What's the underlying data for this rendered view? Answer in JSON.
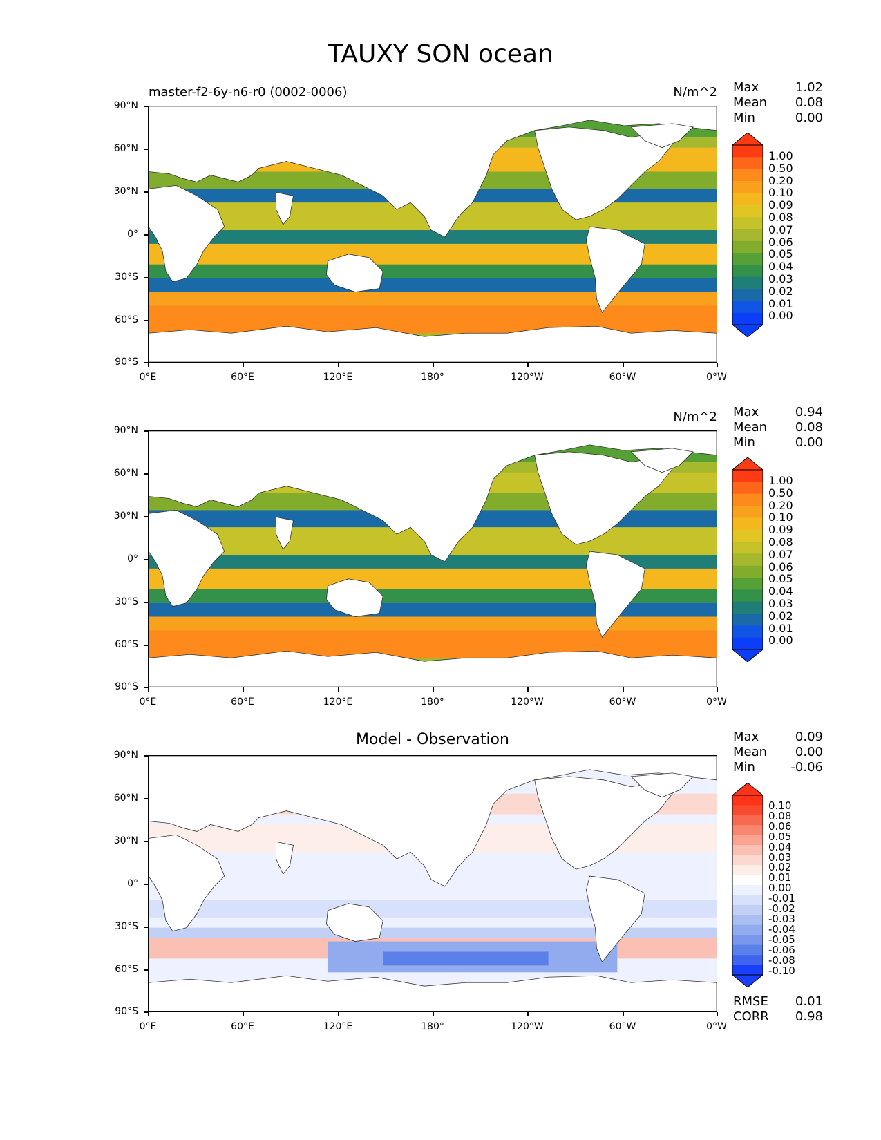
{
  "figure": {
    "title": "TAUXY SON ocean"
  },
  "axes": {
    "lat_ticks": [
      "90°N",
      "60°N",
      "30°N",
      "0°",
      "30°S",
      "60°S",
      "90°S"
    ],
    "lon_ticks": [
      "0°E",
      "60°E",
      "120°E",
      "180°",
      "120°W",
      "60°W",
      "0°W"
    ]
  },
  "panels": [
    {
      "id": "model",
      "left_label": "master-f2-6y-n6-r0 (0002-0006)",
      "units": "N/m^2",
      "stats": {
        "max_label": "Max",
        "max": "1.02",
        "mean_label": "Mean",
        "mean": "0.08",
        "min_label": "Min",
        "min": "0.00"
      },
      "colorbar_ticks": [
        "1.00",
        "0.50",
        "0.20",
        "0.10",
        "0.09",
        "0.08",
        "0.07",
        "0.06",
        "0.05",
        "0.04",
        "0.03",
        "0.02",
        "0.01",
        "0.00"
      ]
    },
    {
      "id": "observation",
      "units": "N/m^2",
      "stats": {
        "max_label": "Max",
        "max": "0.94",
        "mean_label": "Mean",
        "mean": "0.08",
        "min_label": "Min",
        "min": "0.00"
      },
      "colorbar_ticks": [
        "1.00",
        "0.50",
        "0.20",
        "0.10",
        "0.09",
        "0.08",
        "0.07",
        "0.06",
        "0.05",
        "0.04",
        "0.03",
        "0.02",
        "0.01",
        "0.00"
      ]
    },
    {
      "id": "difference",
      "title": "Model - Observation",
      "stats": {
        "max_label": "Max",
        "max": "0.09",
        "mean_label": "Mean",
        "mean": "0.00",
        "min_label": "Min",
        "min": "-0.06"
      },
      "colorbar_ticks": [
        "0.10",
        "0.08",
        "0.06",
        "0.05",
        "0.04",
        "0.03",
        "0.02",
        "0.01",
        "0.00",
        "-0.01",
        "-0.02",
        "-0.03",
        "-0.04",
        "-0.05",
        "-0.06",
        "-0.08",
        "-0.10"
      ],
      "metrics": {
        "rmse_label": "RMSE",
        "rmse": "0.01",
        "corr_label": "CORR",
        "corr": "0.98"
      }
    }
  ],
  "colors": {
    "seq": [
      "#ff3b14",
      "#ff6619",
      "#ff8a1c",
      "#f9a11c",
      "#f4b81e",
      "#e1c623",
      "#c6c22a",
      "#a5b82e",
      "#82ad2c",
      "#56a135",
      "#33914a",
      "#1f7e78",
      "#1b6aa8",
      "#1155e6",
      "#0c3ef8"
    ],
    "div": [
      "#ff3318",
      "#f84a2e",
      "#f76a50",
      "#f8876f",
      "#f9a392",
      "#fac0b3",
      "#fcd9d0",
      "#feeeea",
      "#ffffff",
      "#eef1ff",
      "#d8e1fb",
      "#c2d0f6",
      "#aabef3",
      "#92abef",
      "#7997ec",
      "#5c80ea",
      "#3f64f0",
      "#1a3ff8"
    ]
  }
}
